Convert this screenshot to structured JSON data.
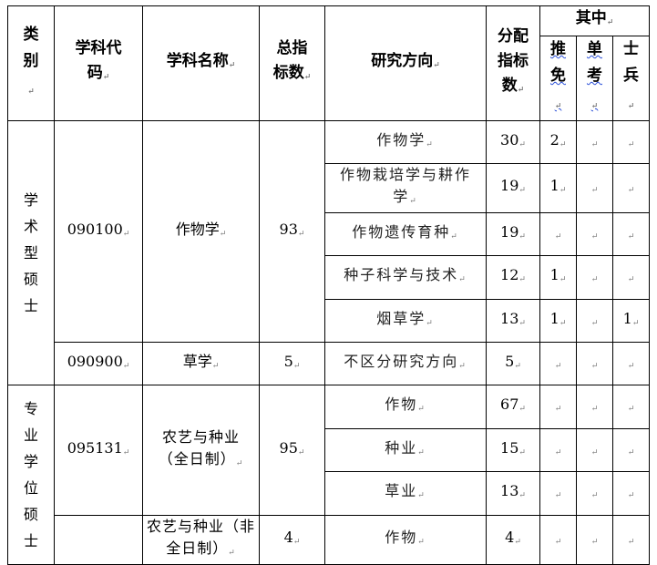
{
  "headers": {
    "category": "类别",
    "code": "学科代码",
    "name": "学科名称",
    "total": "总指标数",
    "direction": "研究方向",
    "allocated": "分配指标数",
    "of_which": "其中",
    "recommend": "推免",
    "single_exam": "单考",
    "soldier": "士兵"
  },
  "groups": [
    {
      "category": "学术型硕士"
    },
    {
      "category": "专业学位硕士"
    }
  ],
  "subjects": [
    {
      "code": "090100",
      "name": "作物学",
      "total": "93"
    },
    {
      "code": "090900",
      "name": "草学",
      "total": "5"
    },
    {
      "code": "095131",
      "name": "农艺与种业（全日制）",
      "total": "95"
    },
    {
      "code": "",
      "name": "农艺与种业（非全日制）",
      "total": "4"
    }
  ],
  "rows": [
    {
      "direction": "作物学",
      "allocated": "30",
      "recommend": "2",
      "single_exam": "",
      "soldier": ""
    },
    {
      "direction": "作物栽培学与耕作学",
      "allocated": "19",
      "recommend": "1",
      "single_exam": "",
      "soldier": ""
    },
    {
      "direction": "作物遗传育种",
      "allocated": "19",
      "recommend": "",
      "single_exam": "",
      "soldier": ""
    },
    {
      "direction": "种子科学与技术",
      "allocated": "12",
      "recommend": "1",
      "single_exam": "",
      "soldier": ""
    },
    {
      "direction": "烟草学",
      "allocated": "13",
      "recommend": "1",
      "single_exam": "",
      "soldier": "1"
    },
    {
      "direction": "不区分研究方向",
      "allocated": "5",
      "recommend": "",
      "single_exam": "",
      "soldier": ""
    },
    {
      "direction": "作物",
      "allocated": "67",
      "recommend": "",
      "single_exam": "",
      "soldier": ""
    },
    {
      "direction": "种业",
      "allocated": "15",
      "recommend": "",
      "single_exam": "",
      "soldier": ""
    },
    {
      "direction": "草业",
      "allocated": "13",
      "recommend": "",
      "single_exam": "",
      "soldier": ""
    },
    {
      "direction": "作物",
      "allocated": "4",
      "recommend": "",
      "single_exam": "",
      "soldier": ""
    }
  ]
}
